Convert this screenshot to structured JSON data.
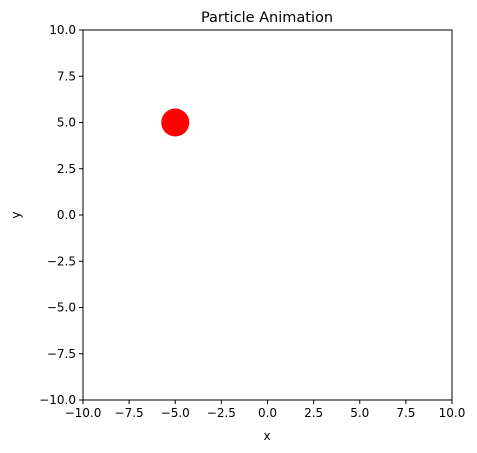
{
  "chart_data": {
    "type": "scatter",
    "title": "Particle Animation",
    "xlabel": "x",
    "ylabel": "y",
    "xlim": [
      -10,
      10
    ],
    "ylim": [
      -10,
      10
    ],
    "grid": false,
    "xticks": [
      -10,
      -7.5,
      -5,
      -2.5,
      0,
      2.5,
      5,
      7.5,
      10
    ],
    "yticks": [
      -10,
      -7.5,
      -5,
      -2.5,
      0,
      2.5,
      5,
      7.5,
      10
    ],
    "xtick_labels": [
      "−10.0",
      "−7.5",
      "−5.0",
      "−2.5",
      "0.0",
      "2.5",
      "5.0",
      "7.5",
      "10.0"
    ],
    "ytick_labels": [
      "−10.0",
      "−7.5",
      "−5.0",
      "−2.5",
      "0.0",
      "2.5",
      "5.0",
      "7.5",
      "10.0"
    ],
    "points": [
      {
        "x": -5,
        "y": 5,
        "color": "#ff0000"
      }
    ]
  }
}
